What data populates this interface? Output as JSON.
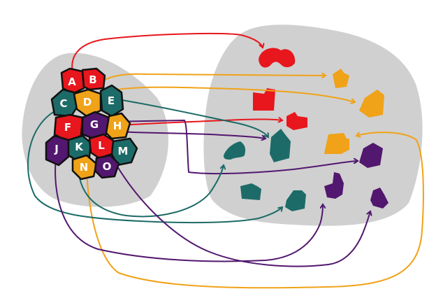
{
  "colors": {
    "red": "#e8161d",
    "orange": "#f0a218",
    "teal": "#1d6b68",
    "purple": "#52176e",
    "blob": "#d0d0d0",
    "outline": "#111111"
  },
  "source_tiles": [
    {
      "label": "A",
      "color": "red"
    },
    {
      "label": "B",
      "color": "red"
    },
    {
      "label": "C",
      "color": "teal"
    },
    {
      "label": "D",
      "color": "orange"
    },
    {
      "label": "E",
      "color": "teal"
    },
    {
      "label": "F",
      "color": "red"
    },
    {
      "label": "G",
      "color": "purple"
    },
    {
      "label": "H",
      "color": "orange"
    },
    {
      "label": "J",
      "color": "purple"
    },
    {
      "label": "K",
      "color": "teal"
    },
    {
      "label": "L",
      "color": "red"
    },
    {
      "label": "M",
      "color": "teal"
    },
    {
      "label": "N",
      "color": "orange"
    },
    {
      "label": "O",
      "color": "purple"
    }
  ],
  "target_pieces": [
    {
      "name": "red-piece-1",
      "color": "red"
    },
    {
      "name": "red-piece-2",
      "color": "red"
    },
    {
      "name": "red-piece-3",
      "color": "red"
    },
    {
      "name": "orange-piece-1",
      "color": "orange"
    },
    {
      "name": "orange-piece-2",
      "color": "orange"
    },
    {
      "name": "orange-piece-3",
      "color": "orange"
    },
    {
      "name": "teal-piece-1",
      "color": "teal"
    },
    {
      "name": "teal-piece-2",
      "color": "teal"
    },
    {
      "name": "teal-piece-3",
      "color": "teal"
    },
    {
      "name": "teal-piece-4",
      "color": "teal"
    },
    {
      "name": "purple-piece-1",
      "color": "purple"
    },
    {
      "name": "purple-piece-2",
      "color": "purple"
    },
    {
      "name": "purple-piece-3",
      "color": "purple"
    }
  ],
  "connections": [
    {
      "from": "A",
      "to": "red-piece-1",
      "color": "red"
    },
    {
      "from": "D",
      "to": "orange-piece-1",
      "color": "orange"
    },
    {
      "from": "D",
      "to": "orange-piece-2",
      "color": "orange"
    },
    {
      "from": "H",
      "to": "red-piece-3",
      "color": "red"
    },
    {
      "from": "E",
      "to": "teal-piece-2",
      "color": "teal"
    },
    {
      "from": "G",
      "to": "purple-piece-1",
      "color": "purple"
    },
    {
      "from": "H",
      "to": "teal-piece-2",
      "color": "purple"
    },
    {
      "from": "C",
      "to": "teal-piece-4",
      "color": "teal"
    },
    {
      "from": "K",
      "to": "teal-piece-1",
      "color": "teal"
    },
    {
      "from": "J",
      "to": "purple-piece-2",
      "color": "purple"
    },
    {
      "from": "O",
      "to": "purple-piece-3",
      "color": "purple"
    },
    {
      "from": "N",
      "to": "orange-piece-3",
      "color": "orange"
    }
  ]
}
